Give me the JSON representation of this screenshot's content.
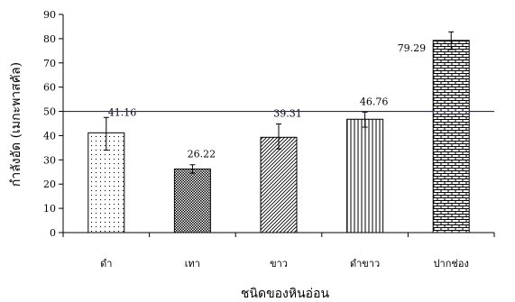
{
  "chart_data": {
    "type": "bar",
    "categories": [
      "ดำ",
      "เทา",
      "ขาว",
      "ดำขาว",
      "ปากช่อง"
    ],
    "values": [
      41.16,
      26.22,
      39.31,
      46.76,
      79.29
    ],
    "value_labels": [
      "41.16",
      "26.22",
      "39.31",
      "46.76",
      "79.29"
    ],
    "error_bars": [
      [
        34.0,
        47.5
      ],
      [
        24.5,
        28.0
      ],
      [
        34.5,
        44.8
      ],
      [
        43.5,
        49.7
      ],
      [
        75.5,
        82.8
      ]
    ],
    "fill_patterns": [
      "dots",
      "dense-check",
      "diagonal",
      "vertical",
      "brick"
    ],
    "reference_line": {
      "value": 50,
      "color": "#1f1fb4"
    },
    "xlabel": "ชนิดของหินอ่อน",
    "ylabel": "กำลังอัด (เมกะพาสคัล)",
    "ylim": [
      0,
      90
    ],
    "yticks": [
      0,
      10,
      20,
      30,
      40,
      50,
      60,
      70,
      80,
      90
    ],
    "grid": false,
    "legend": "none",
    "colors": {
      "bar_fill": "#ffffff",
      "pattern": "#000000",
      "reference_line": "#1f1fb4"
    }
  }
}
